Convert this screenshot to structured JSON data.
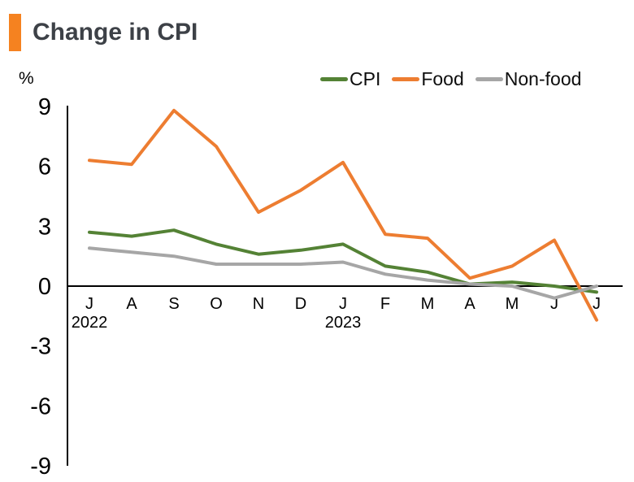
{
  "header": {
    "title": "Change in CPI",
    "accent_color": "#F58220"
  },
  "axis": {
    "unit_label": "%"
  },
  "chart_data": {
    "type": "line",
    "title": "Change in CPI",
    "ylabel": "%",
    "xlabel": "",
    "ylim": [
      -9,
      9
    ],
    "yticks": [
      9,
      6,
      3,
      0,
      -3,
      -6,
      -9
    ],
    "grid": false,
    "legend_position": "top",
    "categories": [
      "J",
      "A",
      "S",
      "O",
      "N",
      "D",
      "J",
      "F",
      "M",
      "A",
      "M",
      "J",
      "J"
    ],
    "year_labels": [
      {
        "index": 0,
        "label": "2022"
      },
      {
        "index": 6,
        "label": "2023"
      }
    ],
    "series": [
      {
        "name": "CPI",
        "color": "#548235",
        "values": [
          2.7,
          2.5,
          2.8,
          2.1,
          1.6,
          1.8,
          2.1,
          1.0,
          0.7,
          0.1,
          0.2,
          0.0,
          -0.3
        ]
      },
      {
        "name": "Food",
        "color": "#ED7D31",
        "values": [
          6.3,
          6.1,
          8.8,
          7.0,
          3.7,
          4.8,
          6.2,
          2.6,
          2.4,
          0.4,
          1.0,
          2.3,
          -1.7
        ]
      },
      {
        "name": "Non-food",
        "color": "#A6A6A6",
        "values": [
          1.9,
          1.7,
          1.5,
          1.1,
          1.1,
          1.1,
          1.2,
          0.6,
          0.3,
          0.1,
          0.0,
          -0.6,
          0.0
        ]
      }
    ],
    "axis_color": "#000000",
    "text_color": "#000000"
  }
}
